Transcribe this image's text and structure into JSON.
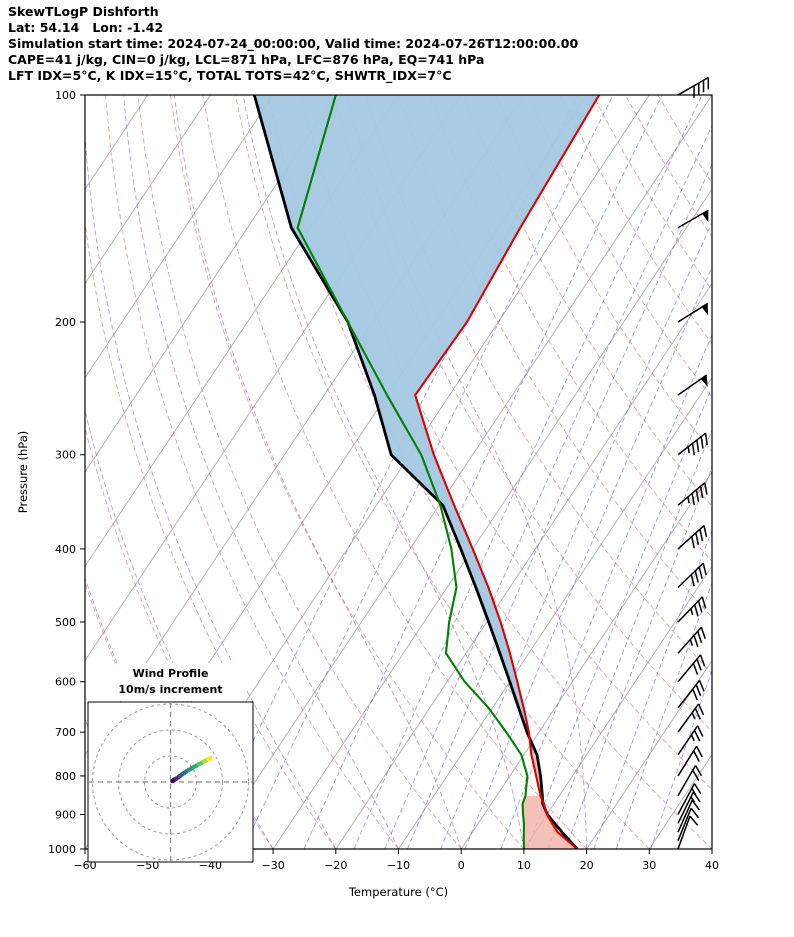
{
  "header": {
    "title": "SkewTLogP Dishforth",
    "line2": "Lat: 54.14   Lon: -1.42",
    "line3": "Simulation start time: 2024-07-24_00:00:00, Valid time: 2024-07-26T12:00:00.00",
    "line4": "CAPE=41 j/kg, CIN=0 j/kg, LCL=871 hPa, LFC=876 hPa, EQ=741 hPa",
    "line5": "LFT IDX=5°C, K IDX=15°C, TOTAL TOTS=42°C, SHWTR_IDX=7°C"
  },
  "station": {
    "name": "Dishforth",
    "lat": 54.14,
    "lon": -1.42
  },
  "indices": {
    "CAPE_j_kg": 41,
    "CIN_j_kg": 0,
    "LCL_hPa": 871,
    "LFC_hPa": 876,
    "EQ_hPa": 741,
    "LFT_IDX_C": 5,
    "K_IDX_C": 15,
    "TOTAL_TOTS_C": 42,
    "SHWTR_IDX_C": 7
  },
  "chart_data": {
    "type": "skewt-logp",
    "xlabel": "Temperature (°C)",
    "ylabel": "Pressure (hPa)",
    "xlim": [
      -60,
      40
    ],
    "plim": [
      1000,
      100
    ],
    "skew_c_per_decade": 80,
    "axes": {
      "x_ticks": [
        -60,
        -50,
        -40,
        -30,
        -20,
        -10,
        0,
        10,
        20,
        30,
        40
      ],
      "p_ticks": [
        100,
        200,
        300,
        400,
        500,
        600,
        700,
        800,
        900,
        1000
      ]
    },
    "grid": {
      "isotherms_c": {
        "start": -150,
        "end": 40,
        "step": 10
      },
      "dry_adiabats_c": {
        "start": -40,
        "end": 160,
        "step": 10
      },
      "moist_adiabats_c": [
        -60,
        -50,
        -40,
        -30,
        -20,
        -10,
        0,
        10,
        20
      ],
      "mixing_ratio_g_kg": [
        0.1,
        0.2,
        0.5,
        1,
        1.5,
        2,
        3,
        4,
        6,
        8,
        10,
        12,
        16,
        20,
        28
      ]
    },
    "sounding": {
      "pressure": [
        1000,
        950,
        925,
        900,
        871,
        850,
        800,
        750,
        700,
        650,
        600,
        550,
        500,
        450,
        400,
        350,
        300,
        250,
        200,
        150,
        100
      ],
      "temperature": [
        18.5,
        13.6,
        11.8,
        10.0,
        8.4,
        7.0,
        4.2,
        1.2,
        -1.6,
        -5.0,
        -8.8,
        -13.0,
        -17.8,
        -23.4,
        -30.0,
        -37.6,
        -46.2,
        -55.5,
        -55.0,
        -56.5,
        -58.0
      ],
      "dewpoint": [
        10.0,
        8.2,
        7.3,
        6.2,
        5.0,
        4.6,
        2.8,
        -0.4,
        -5.2,
        -10.6,
        -17.2,
        -23.2,
        -26.0,
        -28.5,
        -33.4,
        -39.8,
        -48.2,
        -60.0,
        -74.0,
        -92.0,
        -100.0
      ],
      "parcel": [
        18.5,
        14.3,
        12.2,
        10.1,
        8.2,
        7.3,
        4.9,
        2.1,
        -1.9,
        -5.8,
        -10.0,
        -14.6,
        -19.7,
        -25.4,
        -31.9,
        -39.4,
        -53.0,
        -62.0,
        -74.0,
        -93.0,
        -113.0
      ]
    },
    "wind_barbs": {
      "pressure": [
        100,
        150,
        200,
        250,
        300,
        350,
        400,
        450,
        500,
        550,
        600,
        650,
        700,
        750,
        800,
        850,
        900,
        925,
        950,
        975,
        1000
      ],
      "speed_kt": [
        40,
        50,
        50,
        50,
        45,
        45,
        40,
        40,
        35,
        35,
        30,
        30,
        25,
        25,
        20,
        20,
        15,
        15,
        10,
        10,
        10
      ],
      "direction_deg": [
        240,
        240,
        238,
        235,
        232,
        230,
        228,
        226,
        224,
        222,
        220,
        218,
        216,
        214,
        212,
        210,
        208,
        206,
        204,
        202,
        200
      ]
    },
    "hodograph": {
      "title_line1": "Wind Profile",
      "title_line2": "10m/s increment",
      "ring_increment_ms": 10,
      "u_ms": [
        0.8,
        1.5,
        2.2,
        3.0,
        3.6,
        4.4,
        5.2,
        6.0,
        7.0,
        8.0,
        9.0,
        10.0,
        11.0,
        12.0,
        13.0,
        13.8,
        14.5,
        15.2
      ],
      "v_ms": [
        0.4,
        0.9,
        1.3,
        1.8,
        2.3,
        2.9,
        3.4,
        4.0,
        4.6,
        5.2,
        5.8,
        6.3,
        6.9,
        7.4,
        7.9,
        8.4,
        8.8,
        9.2
      ]
    },
    "colors": {
      "temperature": "#dd0000",
      "dewpoint": "#008000",
      "parcel": "#000000",
      "negative_area": "#a3c7e0",
      "positive_area": "#f2b0a6",
      "isotherm": "#a5a5a5",
      "dry_adiabat": "#cc5555",
      "moist_adiabat": "#9944aa",
      "mixing_ratio": "#3344cc",
      "barbs": "#000000",
      "viridis": [
        "#440154",
        "#472d7b",
        "#3b528b",
        "#2c728e",
        "#21918c",
        "#28ae80",
        "#5ec962",
        "#addc30",
        "#fde725"
      ]
    }
  }
}
